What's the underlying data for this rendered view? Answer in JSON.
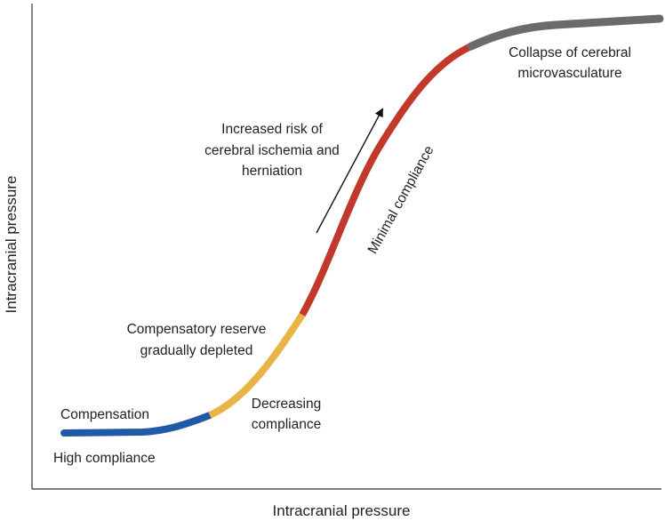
{
  "chart_data": {
    "type": "line",
    "title": "",
    "xlabel": "Intracranial pressure",
    "ylabel": "Intracranial pressure",
    "grid": false,
    "legend": "none",
    "axis_ticks": false,
    "segments": [
      {
        "phase": "compensation",
        "color": "#1f5aa6"
      },
      {
        "phase": "decreasing-compliance",
        "color": "#e8b445"
      },
      {
        "phase": "minimal-compliance",
        "color": "#c0392b"
      },
      {
        "phase": "collapse",
        "color": "#6b6b6b"
      }
    ],
    "annotations": {
      "compensation": "Compensation",
      "high_compliance": "High compliance",
      "reserve_line1": "Compensatory reserve",
      "reserve_line2": "gradually depleted",
      "decreasing_line1": "Decreasing",
      "decreasing_line2": "compliance",
      "minimal": "Minimal compliance",
      "risk_line1": "Increased risk of",
      "risk_line2": "cerebral ischemia and",
      "risk_line3": "herniation",
      "collapse_line1": "Collapse of cerebral",
      "collapse_line2": "microvasculature"
    }
  }
}
